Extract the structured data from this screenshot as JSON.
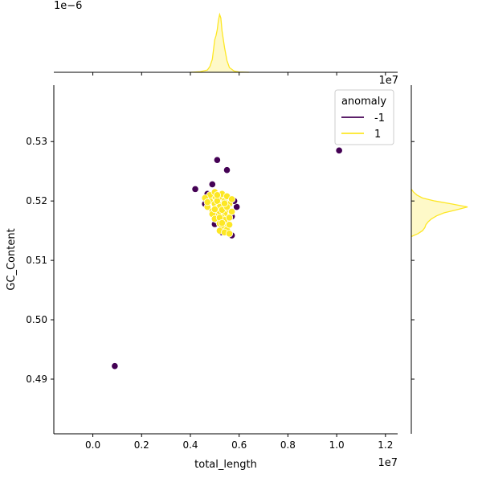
{
  "chart_data": {
    "type": "scatter",
    "subtype": "jointplot",
    "xlabel": "total_length",
    "ylabel": "GC_Content",
    "x_offset_label": "1e7",
    "y_offset_label": "1e7",
    "top_offset_label": "1e−6",
    "x_scale_exponent": 7,
    "xlim": [
      -0.16,
      1.25
    ],
    "ylim": [
      0.4808,
      0.5395
    ],
    "x_ticks": [
      0.0,
      0.2,
      0.4,
      0.6,
      0.8,
      1.0,
      1.2
    ],
    "x_tick_labels": [
      "0.0",
      "0.2",
      "0.4",
      "0.6",
      "0.8",
      "1.0",
      "1.2"
    ],
    "y_ticks": [
      0.49,
      0.5,
      0.51,
      0.52,
      0.53
    ],
    "y_tick_labels": [
      "0.49",
      "0.50",
      "0.51",
      "0.52",
      "0.53"
    ],
    "legend": {
      "title": "anomaly",
      "placement": "top-right",
      "entries": [
        {
          "label": "-1",
          "color": "#440154"
        },
        {
          "label": "1",
          "color": "#fde725"
        }
      ]
    },
    "series": [
      {
        "name": "-1",
        "color": "#440154",
        "points": [
          [
            0.09,
            0.4922
          ],
          [
            1.01,
            0.5285
          ],
          [
            0.42,
            0.522
          ],
          [
            0.51,
            0.5269
          ],
          [
            0.55,
            0.5252
          ],
          [
            0.49,
            0.5228
          ],
          [
            0.59,
            0.519
          ],
          [
            0.57,
            0.5174
          ],
          [
            0.57,
            0.5142
          ],
          [
            0.5,
            0.5161
          ],
          [
            0.47,
            0.5212
          ],
          [
            0.53,
            0.5147
          ],
          [
            0.56,
            0.516
          ],
          [
            0.46,
            0.5195
          ],
          [
            0.58,
            0.52
          ]
        ]
      },
      {
        "name": "1",
        "color": "#fde725",
        "points": [
          [
            0.5,
            0.5208
          ],
          [
            0.52,
            0.5205
          ],
          [
            0.54,
            0.52
          ],
          [
            0.48,
            0.52
          ],
          [
            0.5,
            0.5195
          ],
          [
            0.53,
            0.5193
          ],
          [
            0.56,
            0.5195
          ],
          [
            0.47,
            0.519
          ],
          [
            0.51,
            0.5188
          ],
          [
            0.55,
            0.5185
          ],
          [
            0.49,
            0.5183
          ],
          [
            0.52,
            0.518
          ],
          [
            0.54,
            0.5178
          ],
          [
            0.5,
            0.5175
          ],
          [
            0.53,
            0.5172
          ],
          [
            0.51,
            0.5168
          ],
          [
            0.55,
            0.5165
          ],
          [
            0.52,
            0.5162
          ],
          [
            0.54,
            0.5158
          ],
          [
            0.53,
            0.5155
          ],
          [
            0.55,
            0.5152
          ],
          [
            0.52,
            0.515
          ],
          [
            0.54,
            0.5147
          ],
          [
            0.56,
            0.5145
          ],
          [
            0.48,
            0.521
          ],
          [
            0.5,
            0.5215
          ],
          [
            0.53,
            0.5212
          ],
          [
            0.55,
            0.5208
          ],
          [
            0.57,
            0.5203
          ],
          [
            0.46,
            0.5205
          ],
          [
            0.49,
            0.5178
          ],
          [
            0.57,
            0.5182
          ],
          [
            0.51,
            0.52
          ],
          [
            0.52,
            0.519
          ],
          [
            0.53,
            0.5185
          ],
          [
            0.5,
            0.517
          ],
          [
            0.54,
            0.5168
          ],
          [
            0.56,
            0.5172
          ],
          [
            0.47,
            0.5198
          ],
          [
            0.55,
            0.519
          ],
          [
            0.51,
            0.521
          ],
          [
            0.52,
            0.5172
          ],
          [
            0.53,
            0.5163
          ],
          [
            0.56,
            0.516
          ],
          [
            0.5,
            0.5186
          ],
          [
            0.54,
            0.5196
          ]
        ]
      }
    ],
    "marginal_x_kde": {
      "series": "1",
      "x": [
        0.4,
        0.44,
        0.47,
        0.48,
        0.49,
        0.5,
        0.505,
        0.51,
        0.515,
        0.52,
        0.525,
        0.53,
        0.54,
        0.55,
        0.56,
        0.58,
        0.6,
        0.64
      ],
      "density": [
        0.0,
        0.01,
        0.04,
        0.1,
        0.22,
        0.55,
        0.62,
        0.72,
        0.88,
        0.98,
        0.92,
        0.7,
        0.42,
        0.2,
        0.08,
        0.02,
        0.005,
        0.0
      ]
    },
    "marginal_y_kde": {
      "series": "1",
      "y": [
        0.514,
        0.5145,
        0.515,
        0.5155,
        0.516,
        0.5165,
        0.517,
        0.5175,
        0.518,
        0.5185,
        0.519,
        0.5195,
        0.52,
        0.5205,
        0.521,
        0.5215,
        0.522
      ],
      "density": [
        0.0,
        0.12,
        0.2,
        0.24,
        0.26,
        0.3,
        0.36,
        0.45,
        0.58,
        0.8,
        1.0,
        0.72,
        0.42,
        0.2,
        0.1,
        0.04,
        0.0
      ]
    }
  }
}
